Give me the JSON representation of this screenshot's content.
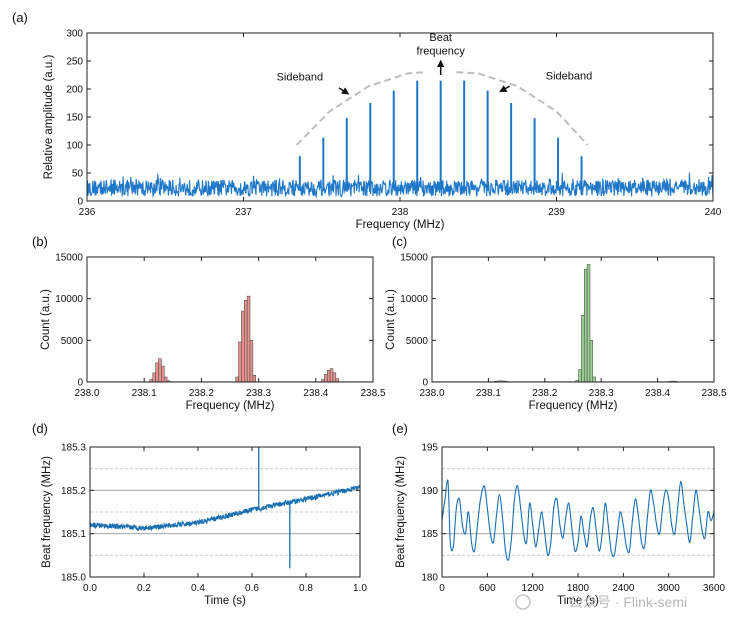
{
  "chart_data": [
    {
      "id": "a",
      "panel_label": "(a)",
      "type": "line",
      "xlabel": "Frequency (MHz)",
      "ylabel": "Relative amplitude (a.u.)",
      "xlim": [
        236,
        240
      ],
      "ylim": [
        0,
        300
      ],
      "xticks": [
        "236",
        "237",
        "238",
        "239",
        "240"
      ],
      "yticks": [
        "0",
        "50",
        "100",
        "150",
        "200",
        "250",
        "300"
      ],
      "color": "#1f77c8",
      "noise_floor": [
        0,
        45
      ],
      "peaks": [
        {
          "x": 237.36,
          "y": 80
        },
        {
          "x": 237.51,
          "y": 113
        },
        {
          "x": 237.66,
          "y": 148
        },
        {
          "x": 237.81,
          "y": 175
        },
        {
          "x": 237.96,
          "y": 197
        },
        {
          "x": 238.11,
          "y": 215
        },
        {
          "x": 238.26,
          "y": 215
        },
        {
          "x": 238.41,
          "y": 215
        },
        {
          "x": 238.56,
          "y": 197
        },
        {
          "x": 238.71,
          "y": 175
        },
        {
          "x": 238.86,
          "y": 148
        },
        {
          "x": 239.01,
          "y": 113
        },
        {
          "x": 239.16,
          "y": 80
        }
      ],
      "envelope": [
        {
          "x": 237.34,
          "y": 100
        },
        {
          "x": 237.55,
          "y": 160
        },
        {
          "x": 237.8,
          "y": 205
        },
        {
          "x": 238.05,
          "y": 228
        },
        {
          "x": 238.15,
          "y": 230
        }
      ],
      "envelope_right": [
        {
          "x": 238.36,
          "y": 230
        },
        {
          "x": 238.5,
          "y": 228
        },
        {
          "x": 238.75,
          "y": 205
        },
        {
          "x": 239.0,
          "y": 160
        },
        {
          "x": 239.2,
          "y": 100
        }
      ],
      "annotations": {
        "sideband_left": "Sideband",
        "sideband_right": "Sideband",
        "beat_line1": "Beat",
        "beat_line2": "frequency"
      }
    },
    {
      "id": "b",
      "panel_label": "(b)",
      "type": "bar",
      "xlabel": "Frequency (MHz)",
      "ylabel": "Count (a.u.)",
      "xlim": [
        238.0,
        238.5
      ],
      "ylim": [
        0,
        15000
      ],
      "xticks": [
        "238.0",
        "238.1",
        "238.2",
        "238.3",
        "238.4",
        "238.5"
      ],
      "yticks": [
        "0",
        "5000",
        "10000",
        "15000"
      ],
      "color": "#e8908c",
      "bin_width": 0.005,
      "bins": [
        {
          "x": 238.11,
          "count": 300
        },
        {
          "x": 238.115,
          "count": 1100
        },
        {
          "x": 238.12,
          "count": 2300
        },
        {
          "x": 238.125,
          "count": 2800
        },
        {
          "x": 238.13,
          "count": 1900
        },
        {
          "x": 238.135,
          "count": 600
        },
        {
          "x": 238.14,
          "count": 150
        },
        {
          "x": 238.26,
          "count": 600
        },
        {
          "x": 238.265,
          "count": 4800
        },
        {
          "x": 238.27,
          "count": 8500
        },
        {
          "x": 238.275,
          "count": 9800
        },
        {
          "x": 238.28,
          "count": 10300
        },
        {
          "x": 238.285,
          "count": 5000
        },
        {
          "x": 238.29,
          "count": 800
        },
        {
          "x": 238.41,
          "count": 300
        },
        {
          "x": 238.415,
          "count": 900
        },
        {
          "x": 238.42,
          "count": 1400
        },
        {
          "x": 238.425,
          "count": 1600
        },
        {
          "x": 238.43,
          "count": 1100
        },
        {
          "x": 238.435,
          "count": 400
        }
      ]
    },
    {
      "id": "c",
      "panel_label": "(c)",
      "type": "bar",
      "xlabel": "Frequency (MHz)",
      "ylabel": "Count (a.u.)",
      "xlim": [
        238.0,
        238.5
      ],
      "ylim": [
        0,
        15000
      ],
      "xticks": [
        "238.0",
        "238.1",
        "238.2",
        "238.3",
        "238.4",
        "238.5"
      ],
      "yticks": [
        "0",
        "5000",
        "10000",
        "15000"
      ],
      "color": "#97d08f",
      "bin_width": 0.005,
      "bins": [
        {
          "x": 238.11,
          "count": 80
        },
        {
          "x": 238.115,
          "count": 120
        },
        {
          "x": 238.12,
          "count": 150
        },
        {
          "x": 238.125,
          "count": 120
        },
        {
          "x": 238.13,
          "count": 80
        },
        {
          "x": 238.255,
          "count": 200
        },
        {
          "x": 238.26,
          "count": 1500
        },
        {
          "x": 238.265,
          "count": 8000
        },
        {
          "x": 238.27,
          "count": 13500
        },
        {
          "x": 238.275,
          "count": 14100
        },
        {
          "x": 238.28,
          "count": 5000
        },
        {
          "x": 238.285,
          "count": 600
        },
        {
          "x": 238.42,
          "count": 80
        },
        {
          "x": 238.425,
          "count": 100
        },
        {
          "x": 238.43,
          "count": 80
        }
      ]
    },
    {
      "id": "d",
      "panel_label": "(d)",
      "type": "line",
      "xlabel": "Time (s)",
      "ylabel": "Beat frequency (MHz)",
      "xlim": [
        0.0,
        1.0
      ],
      "ylim": [
        185.0,
        185.3
      ],
      "xticks": [
        "0.0",
        "0.2",
        "0.4",
        "0.6",
        "0.8",
        "1.0"
      ],
      "yticks": [
        "185.0",
        "185.1",
        "185.2",
        "185.3"
      ],
      "grid_solid": [
        185.1,
        185.2
      ],
      "grid_dashed": [
        185.05,
        185.15,
        185.25
      ],
      "color": "#1a6fb0",
      "trend": [
        {
          "x": 0.0,
          "y": 185.12
        },
        {
          "x": 0.2,
          "y": 185.113
        },
        {
          "x": 0.4,
          "y": 185.125
        },
        {
          "x": 0.6,
          "y": 185.155
        },
        {
          "x": 0.8,
          "y": 185.18
        },
        {
          "x": 1.0,
          "y": 185.207
        }
      ],
      "spikes": [
        {
          "x": 0.625,
          "y": 185.3
        },
        {
          "x": 0.74,
          "y": 185.02
        }
      ]
    },
    {
      "id": "e",
      "panel_label": "(e)",
      "type": "line",
      "xlabel": "Time (s)",
      "ylabel": "Beat frequency (MHz)",
      "xlim": [
        0,
        3600
      ],
      "ylim": [
        180,
        195
      ],
      "xticks": [
        "0",
        "600",
        "1200",
        "1800",
        "2400",
        "3000",
        "3600"
      ],
      "yticks": [
        "180",
        "185",
        "190",
        "195"
      ],
      "grid_solid": [
        185,
        190
      ],
      "grid_dashed": [
        182.5,
        187.5,
        192.5
      ],
      "color": "#1a6fb0",
      "series": [
        {
          "x": 0,
          "y": 186.5
        },
        {
          "x": 40,
          "y": 189
        },
        {
          "x": 80,
          "y": 191
        },
        {
          "x": 110,
          "y": 184
        },
        {
          "x": 150,
          "y": 183.5
        },
        {
          "x": 190,
          "y": 188
        },
        {
          "x": 230,
          "y": 189
        },
        {
          "x": 270,
          "y": 186
        },
        {
          "x": 310,
          "y": 185
        },
        {
          "x": 350,
          "y": 187.5
        },
        {
          "x": 390,
          "y": 184
        },
        {
          "x": 430,
          "y": 183
        },
        {
          "x": 470,
          "y": 186
        },
        {
          "x": 510,
          "y": 189
        },
        {
          "x": 560,
          "y": 190.5
        },
        {
          "x": 600,
          "y": 188
        },
        {
          "x": 640,
          "y": 185
        },
        {
          "x": 680,
          "y": 184
        },
        {
          "x": 720,
          "y": 187
        },
        {
          "x": 760,
          "y": 189.5
        },
        {
          "x": 800,
          "y": 187
        },
        {
          "x": 840,
          "y": 183
        },
        {
          "x": 880,
          "y": 182
        },
        {
          "x": 920,
          "y": 184.5
        },
        {
          "x": 960,
          "y": 189
        },
        {
          "x": 1000,
          "y": 190.5
        },
        {
          "x": 1040,
          "y": 188
        },
        {
          "x": 1080,
          "y": 185
        },
        {
          "x": 1120,
          "y": 184
        },
        {
          "x": 1160,
          "y": 188.5
        },
        {
          "x": 1200,
          "y": 186
        },
        {
          "x": 1240,
          "y": 183.5
        },
        {
          "x": 1280,
          "y": 185.5
        },
        {
          "x": 1320,
          "y": 187.5
        },
        {
          "x": 1360,
          "y": 185
        },
        {
          "x": 1400,
          "y": 182.5
        },
        {
          "x": 1440,
          "y": 184
        },
        {
          "x": 1480,
          "y": 188
        },
        {
          "x": 1520,
          "y": 189
        },
        {
          "x": 1560,
          "y": 186
        },
        {
          "x": 1600,
          "y": 184.5
        },
        {
          "x": 1640,
          "y": 187
        },
        {
          "x": 1680,
          "y": 188.5
        },
        {
          "x": 1720,
          "y": 185.5
        },
        {
          "x": 1760,
          "y": 183
        },
        {
          "x": 1800,
          "y": 184
        },
        {
          "x": 1840,
          "y": 187
        },
        {
          "x": 1880,
          "y": 185
        },
        {
          "x": 1920,
          "y": 183.5
        },
        {
          "x": 1960,
          "y": 186.5
        },
        {
          "x": 2000,
          "y": 188
        },
        {
          "x": 2040,
          "y": 185.5
        },
        {
          "x": 2080,
          "y": 183
        },
        {
          "x": 2120,
          "y": 185
        },
        {
          "x": 2160,
          "y": 188.5
        },
        {
          "x": 2200,
          "y": 186
        },
        {
          "x": 2240,
          "y": 183
        },
        {
          "x": 2280,
          "y": 182.5
        },
        {
          "x": 2320,
          "y": 185
        },
        {
          "x": 2360,
          "y": 187.5
        },
        {
          "x": 2400,
          "y": 186
        },
        {
          "x": 2440,
          "y": 183.5
        },
        {
          "x": 2480,
          "y": 183
        },
        {
          "x": 2520,
          "y": 186.5
        },
        {
          "x": 2560,
          "y": 189
        },
        {
          "x": 2600,
          "y": 187
        },
        {
          "x": 2640,
          "y": 184
        },
        {
          "x": 2680,
          "y": 183.5
        },
        {
          "x": 2720,
          "y": 187
        },
        {
          "x": 2760,
          "y": 190
        },
        {
          "x": 2800,
          "y": 188.5
        },
        {
          "x": 2840,
          "y": 186
        },
        {
          "x": 2880,
          "y": 185
        },
        {
          "x": 2920,
          "y": 188
        },
        {
          "x": 2960,
          "y": 190
        },
        {
          "x": 3000,
          "y": 189
        },
        {
          "x": 3040,
          "y": 186
        },
        {
          "x": 3080,
          "y": 185
        },
        {
          "x": 3120,
          "y": 188
        },
        {
          "x": 3160,
          "y": 191
        },
        {
          "x": 3200,
          "y": 188.5
        },
        {
          "x": 3240,
          "y": 186
        },
        {
          "x": 3280,
          "y": 184
        },
        {
          "x": 3320,
          "y": 187
        },
        {
          "x": 3360,
          "y": 190
        },
        {
          "x": 3400,
          "y": 188
        },
        {
          "x": 3440,
          "y": 185.5
        },
        {
          "x": 3480,
          "y": 184.5
        },
        {
          "x": 3520,
          "y": 187.5
        },
        {
          "x": 3560,
          "y": 186.5
        },
        {
          "x": 3600,
          "y": 187.5
        }
      ]
    }
  ],
  "watermark": "公众号 · Flink-semi"
}
